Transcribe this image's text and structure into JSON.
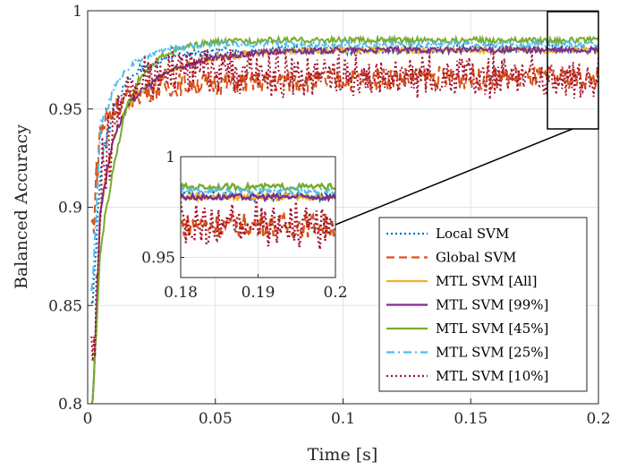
{
  "chart_data": {
    "type": "line",
    "title": "",
    "xlabel": "Time [s]",
    "ylabel": "Balanced Accuracy",
    "xlim": [
      0,
      0.2
    ],
    "ylim": [
      0.8,
      1.0
    ],
    "xticks": [
      "0",
      "0.05",
      "0.1",
      "0.15",
      "0.2"
    ],
    "yticks": [
      "0.8",
      "0.85",
      "0.9",
      "0.95",
      "1"
    ],
    "grid": true,
    "legend_position": "lower-right",
    "series": [
      {
        "name": "Local SVM",
        "style": "dotted",
        "color": "#0072BD",
        "x": [
          0.002,
          0.005,
          0.01,
          0.015,
          0.02,
          0.03,
          0.04,
          0.05,
          0.07,
          0.1,
          0.13,
          0.16,
          0.2
        ],
        "y": [
          0.85,
          0.92,
          0.95,
          0.963,
          0.97,
          0.975,
          0.978,
          0.979,
          0.98,
          0.98,
          0.98,
          0.981,
          0.98
        ]
      },
      {
        "name": "Global SVM",
        "style": "dashed",
        "color": "#D95319",
        "x": [
          0.002,
          0.005,
          0.01,
          0.015,
          0.02,
          0.03,
          0.04,
          0.05,
          0.07,
          0.1,
          0.13,
          0.16,
          0.2
        ],
        "y": [
          0.89,
          0.94,
          0.95,
          0.955,
          0.958,
          0.962,
          0.963,
          0.963,
          0.964,
          0.965,
          0.966,
          0.966,
          0.966
        ]
      },
      {
        "name": "MTL SVM [All]",
        "style": "solid",
        "color": "#EDB120",
        "x": [
          0.002,
          0.005,
          0.01,
          0.015,
          0.02,
          0.03,
          0.04,
          0.05,
          0.07,
          0.1,
          0.13,
          0.16,
          0.2
        ],
        "y": [
          0.8,
          0.9,
          0.935,
          0.95,
          0.958,
          0.968,
          0.973,
          0.976,
          0.979,
          0.98,
          0.98,
          0.98,
          0.98
        ]
      },
      {
        "name": "MTL SVM [99%]",
        "style": "solid",
        "color": "#7E2F8E",
        "x": [
          0.002,
          0.005,
          0.01,
          0.015,
          0.02,
          0.03,
          0.04,
          0.05,
          0.07,
          0.1,
          0.13,
          0.16,
          0.2
        ],
        "y": [
          0.8,
          0.9,
          0.935,
          0.95,
          0.958,
          0.968,
          0.973,
          0.976,
          0.979,
          0.98,
          0.98,
          0.98,
          0.98
        ]
      },
      {
        "name": "MTL SVM [45%]",
        "style": "solid",
        "color": "#77AC30",
        "x": [
          0.002,
          0.005,
          0.01,
          0.015,
          0.02,
          0.03,
          0.04,
          0.05,
          0.07,
          0.1,
          0.13,
          0.16,
          0.2
        ],
        "y": [
          0.8,
          0.88,
          0.92,
          0.95,
          0.965,
          0.978,
          0.982,
          0.984,
          0.985,
          0.985,
          0.985,
          0.985,
          0.985
        ]
      },
      {
        "name": "MTL SVM [25%]",
        "style": "dashdot",
        "color": "#4DBEEE",
        "x": [
          0.002,
          0.005,
          0.01,
          0.015,
          0.02,
          0.03,
          0.04,
          0.05,
          0.07,
          0.1,
          0.13,
          0.16,
          0.2
        ],
        "y": [
          0.86,
          0.94,
          0.96,
          0.97,
          0.975,
          0.98,
          0.982,
          0.983,
          0.983,
          0.983,
          0.983,
          0.983,
          0.983
        ]
      },
      {
        "name": "MTL SVM [10%]",
        "style": "dotted",
        "color": "#A2142F",
        "x": [
          0.002,
          0.005,
          0.01,
          0.015,
          0.02,
          0.03,
          0.04,
          0.05,
          0.07,
          0.1,
          0.13,
          0.16,
          0.2
        ],
        "y": [
          0.82,
          0.92,
          0.95,
          0.96,
          0.968,
          0.973,
          0.975,
          0.975,
          0.973,
          0.972,
          0.971,
          0.971,
          0.97
        ]
      }
    ],
    "inset": {
      "xlim": [
        0.18,
        0.2
      ],
      "ylim": [
        0.94,
        1.0
      ],
      "xticks": [
        "0.18",
        "0.19",
        "0.2"
      ],
      "yticks": [
        "0.95",
        "1"
      ],
      "grid": true
    }
  }
}
